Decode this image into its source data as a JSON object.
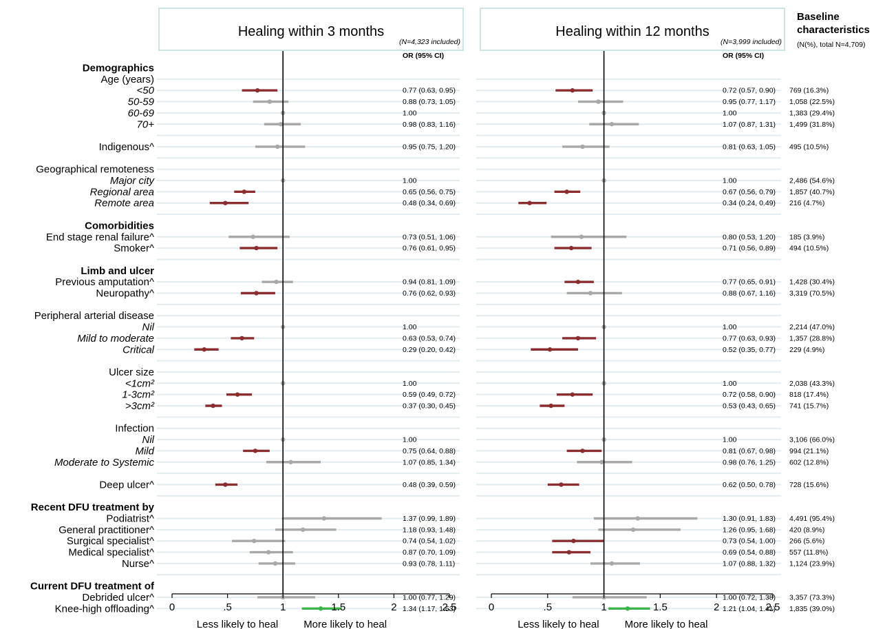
{
  "panels": [
    {
      "title": "Healing within 3 months",
      "n_note": "(N=4,323 included)",
      "or_header": "OR (95% CI)"
    },
    {
      "title": "Healing within 12 months",
      "n_note": "(N=3,999 included)",
      "or_header": "OR (95% CI)"
    }
  ],
  "baseline": {
    "title_line1": "Baseline",
    "title_line2": "characteristics",
    "subtitle": "(N(%), total N=4,709)"
  },
  "axis": {
    "ticks": [
      "0",
      ".5",
      "1",
      "1.5",
      "2",
      "2.5"
    ],
    "label_left": "Less likely to heal",
    "label_right": "More likely to heal"
  },
  "colors": {
    "significant_negative": "#8b2c2f",
    "non_significant": "#a8a8a8",
    "significant_positive": "#3cb44b",
    "grid": "#e2ecf0",
    "panel_border": "#cfe3e3"
  },
  "chart_data": {
    "type": "forest",
    "reference_line": 1,
    "xlim": [
      0,
      2.5
    ],
    "series_names": [
      "Healing within 3 months",
      "Healing within 12 months"
    ],
    "rows": [
      {
        "label": "Demographics",
        "style": "section"
      },
      {
        "label": "Age (years)",
        "style": "header"
      },
      {
        "label": "<50",
        "style": "sub",
        "baseline": "769 (16.3%)",
        "or3": {
          "or": 0.77,
          "lo": 0.63,
          "hi": 0.95,
          "text": "0.77 (0.63, 0.95)",
          "sig": "neg"
        },
        "or12": {
          "or": 0.72,
          "lo": 0.57,
          "hi": 0.9,
          "text": "0.72 (0.57, 0.90)",
          "sig": "neg"
        }
      },
      {
        "label": "50-59",
        "style": "sub",
        "baseline": "1,058 (22.5%)",
        "or3": {
          "or": 0.88,
          "lo": 0.73,
          "hi": 1.05,
          "text": "0.88 (0.73, 1.05)",
          "sig": "ns"
        },
        "or12": {
          "or": 0.95,
          "lo": 0.77,
          "hi": 1.17,
          "text": "0.95 (0.77, 1.17)",
          "sig": "ns"
        }
      },
      {
        "label": "60-69",
        "style": "sub",
        "baseline": "1,383 (29.4%)",
        "or3": {
          "or": 1,
          "lo": 1,
          "hi": 1,
          "text": "1.00",
          "sig": "ns"
        },
        "or12": {
          "or": 1,
          "lo": 1,
          "hi": 1,
          "text": "1.00",
          "sig": "ns"
        }
      },
      {
        "label": "70+",
        "style": "sub",
        "baseline": "1,499 (31.8%)",
        "or3": {
          "or": 0.98,
          "lo": 0.83,
          "hi": 1.16,
          "text": "0.98 (0.83, 1.16)",
          "sig": "ns"
        },
        "or12": {
          "or": 1.07,
          "lo": 0.87,
          "hi": 1.31,
          "text": "1.07 (0.87, 1.31)",
          "sig": "ns"
        }
      },
      {
        "label": "",
        "style": "blank"
      },
      {
        "label": "Indigenous^",
        "style": "plain",
        "baseline": "495 (10.5%)",
        "or3": {
          "or": 0.95,
          "lo": 0.75,
          "hi": 1.2,
          "text": "0.95 (0.75, 1.20)",
          "sig": "ns"
        },
        "or12": {
          "or": 0.81,
          "lo": 0.63,
          "hi": 1.05,
          "text": "0.81 (0.63, 1.05)",
          "sig": "ns"
        }
      },
      {
        "label": "",
        "style": "blank"
      },
      {
        "label": "Geographical remoteness",
        "style": "header"
      },
      {
        "label": "Major city",
        "style": "sub",
        "baseline": "2,486 (54.6%)",
        "or3": {
          "or": 1,
          "lo": 1,
          "hi": 1,
          "text": "1.00",
          "sig": "ns"
        },
        "or12": {
          "or": 1,
          "lo": 1,
          "hi": 1,
          "text": "1.00",
          "sig": "ns"
        }
      },
      {
        "label": "Regional area",
        "style": "sub",
        "baseline": "1,857 (40.7%)",
        "or3": {
          "or": 0.65,
          "lo": 0.56,
          "hi": 0.75,
          "text": "0.65 (0.56, 0.75)",
          "sig": "neg"
        },
        "or12": {
          "or": 0.67,
          "lo": 0.56,
          "hi": 0.79,
          "text": "0.67 (0.56, 0.79)",
          "sig": "neg"
        }
      },
      {
        "label": "Remote area",
        "style": "sub",
        "baseline": "216 (4.7%)",
        "or3": {
          "or": 0.48,
          "lo": 0.34,
          "hi": 0.69,
          "text": "0.48 (0.34, 0.69)",
          "sig": "neg"
        },
        "or12": {
          "or": 0.34,
          "lo": 0.24,
          "hi": 0.49,
          "text": "0.34 (0.24, 0.49)",
          "sig": "neg"
        }
      },
      {
        "label": "",
        "style": "blank"
      },
      {
        "label": "Comorbidities",
        "style": "section"
      },
      {
        "label": "End stage renal failure^",
        "style": "plain",
        "baseline": "185 (3.9%)",
        "or3": {
          "or": 0.73,
          "lo": 0.51,
          "hi": 1.06,
          "text": "0.73 (0.51, 1.06)",
          "sig": "ns"
        },
        "or12": {
          "or": 0.8,
          "lo": 0.53,
          "hi": 1.2,
          "text": "0.80 (0.53, 1.20)",
          "sig": "ns"
        }
      },
      {
        "label": "Smoker^",
        "style": "plain",
        "baseline": "494 (10.5%)",
        "or3": {
          "or": 0.76,
          "lo": 0.61,
          "hi": 0.95,
          "text": "0.76 (0.61, 0.95)",
          "sig": "neg"
        },
        "or12": {
          "or": 0.71,
          "lo": 0.56,
          "hi": 0.89,
          "text": "0.71 (0.56, 0.89)",
          "sig": "neg"
        }
      },
      {
        "label": "",
        "style": "blank"
      },
      {
        "label": "Limb and ulcer",
        "style": "section"
      },
      {
        "label": "Previous amputation^",
        "style": "plain",
        "baseline": "1,428 (30.4%)",
        "or3": {
          "or": 0.94,
          "lo": 0.81,
          "hi": 1.09,
          "text": "0.94 (0.81, 1.09)",
          "sig": "ns"
        },
        "or12": {
          "or": 0.77,
          "lo": 0.65,
          "hi": 0.91,
          "text": "0.77 (0.65, 0.91)",
          "sig": "neg"
        }
      },
      {
        "label": "Neuropathy^",
        "style": "plain",
        "baseline": "3,319 (70.5%)",
        "or3": {
          "or": 0.76,
          "lo": 0.62,
          "hi": 0.93,
          "text": "0.76 (0.62, 0.93)",
          "sig": "neg"
        },
        "or12": {
          "or": 0.88,
          "lo": 0.67,
          "hi": 1.16,
          "text": "0.88 (0.67, 1.16)",
          "sig": "ns"
        }
      },
      {
        "label": "",
        "style": "blank"
      },
      {
        "label": "Peripheral arterial disease",
        "style": "header"
      },
      {
        "label": "Nil",
        "style": "sub",
        "baseline": "2,214 (47.0%)",
        "or3": {
          "or": 1,
          "lo": 1,
          "hi": 1,
          "text": "1.00",
          "sig": "ns"
        },
        "or12": {
          "or": 1,
          "lo": 1,
          "hi": 1,
          "text": "1.00",
          "sig": "ns"
        }
      },
      {
        "label": "Mild to moderate",
        "style": "sub",
        "baseline": "1,357 (28.8%)",
        "or3": {
          "or": 0.63,
          "lo": 0.53,
          "hi": 0.74,
          "text": "0.63 (0.53, 0.74)",
          "sig": "neg"
        },
        "or12": {
          "or": 0.77,
          "lo": 0.63,
          "hi": 0.93,
          "text": "0.77 (0.63, 0.93)",
          "sig": "neg"
        }
      },
      {
        "label": "Critical",
        "style": "sub",
        "baseline": "229 (4.9%)",
        "or3": {
          "or": 0.29,
          "lo": 0.2,
          "hi": 0.42,
          "text": "0.29 (0.20, 0.42)",
          "sig": "neg"
        },
        "or12": {
          "or": 0.52,
          "lo": 0.35,
          "hi": 0.77,
          "text": "0.52 (0.35, 0.77)",
          "sig": "neg"
        }
      },
      {
        "label": "",
        "style": "blank"
      },
      {
        "label": "Ulcer size",
        "style": "header"
      },
      {
        "label": "<1cm²",
        "style": "sub",
        "baseline": "2,038 (43.3%)",
        "or3": {
          "or": 1,
          "lo": 1,
          "hi": 1,
          "text": "1.00",
          "sig": "ns"
        },
        "or12": {
          "or": 1,
          "lo": 1,
          "hi": 1,
          "text": "1.00",
          "sig": "ns"
        }
      },
      {
        "label": "1-3cm²",
        "style": "sub",
        "baseline": "818 (17.4%)",
        "or3": {
          "or": 0.59,
          "lo": 0.49,
          "hi": 0.72,
          "text": "0.59 (0.49, 0.72)",
          "sig": "neg"
        },
        "or12": {
          "or": 0.72,
          "lo": 0.58,
          "hi": 0.9,
          "text": "0.72 (0.58, 0.90)",
          "sig": "neg"
        }
      },
      {
        "label": ">3cm²",
        "style": "sub",
        "baseline": "741 (15.7%)",
        "or3": {
          "or": 0.37,
          "lo": 0.3,
          "hi": 0.45,
          "text": "0.37 (0.30, 0.45)",
          "sig": "neg"
        },
        "or12": {
          "or": 0.53,
          "lo": 0.43,
          "hi": 0.65,
          "text": "0.53 (0.43, 0.65)",
          "sig": "neg"
        }
      },
      {
        "label": "",
        "style": "blank"
      },
      {
        "label": "Infection",
        "style": "header"
      },
      {
        "label": "Nil",
        "style": "sub",
        "baseline": "3,106 (66.0%)",
        "or3": {
          "or": 1,
          "lo": 1,
          "hi": 1,
          "text": "1.00",
          "sig": "ns"
        },
        "or12": {
          "or": 1,
          "lo": 1,
          "hi": 1,
          "text": "1.00",
          "sig": "ns"
        }
      },
      {
        "label": "Mild",
        "style": "sub",
        "baseline": "994 (21.1%)",
        "or3": {
          "or": 0.75,
          "lo": 0.64,
          "hi": 0.88,
          "text": "0.75 (0.64, 0.88)",
          "sig": "neg"
        },
        "or12": {
          "or": 0.81,
          "lo": 0.67,
          "hi": 0.98,
          "text": "0.81 (0.67, 0.98)",
          "sig": "neg"
        }
      },
      {
        "label": "Moderate to Systemic",
        "style": "sub",
        "baseline": "602 (12.8%)",
        "or3": {
          "or": 1.07,
          "lo": 0.85,
          "hi": 1.34,
          "text": "1.07 (0.85, 1.34)",
          "sig": "ns"
        },
        "or12": {
          "or": 0.98,
          "lo": 0.76,
          "hi": 1.25,
          "text": "0.98 (0.76, 1.25)",
          "sig": "ns"
        }
      },
      {
        "label": "",
        "style": "blank"
      },
      {
        "label": "Deep ulcer^",
        "style": "plain",
        "baseline": "728 (15.6%)",
        "or3": {
          "or": 0.48,
          "lo": 0.39,
          "hi": 0.59,
          "text": "0.48 (0.39, 0.59)",
          "sig": "neg"
        },
        "or12": {
          "or": 0.62,
          "lo": 0.5,
          "hi": 0.78,
          "text": "0.62 (0.50, 0.78)",
          "sig": "neg"
        }
      },
      {
        "label": "",
        "style": "blank"
      },
      {
        "label": "Recent DFU treatment by",
        "style": "section"
      },
      {
        "label": "Podiatrist^",
        "style": "plain",
        "baseline": "4,491 (95.4%)",
        "or3": {
          "or": 1.37,
          "lo": 0.99,
          "hi": 1.89,
          "text": "1.37 (0.99, 1.89)",
          "sig": "ns"
        },
        "or12": {
          "or": 1.3,
          "lo": 0.91,
          "hi": 1.83,
          "text": "1.30 (0.91, 1.83)",
          "sig": "ns"
        }
      },
      {
        "label": "General practitioner^",
        "style": "plain",
        "baseline": "420 (8.9%)",
        "or3": {
          "or": 1.18,
          "lo": 0.93,
          "hi": 1.48,
          "text": "1.18 (0.93, 1.48)",
          "sig": "ns"
        },
        "or12": {
          "or": 1.26,
          "lo": 0.95,
          "hi": 1.68,
          "text": "1.26 (0.95, 1.68)",
          "sig": "ns"
        }
      },
      {
        "label": "Surgical specialist^",
        "style": "plain",
        "baseline": "266 (5.6%)",
        "or3": {
          "or": 0.74,
          "lo": 0.54,
          "hi": 1.02,
          "text": "0.74 (0.54, 1.02)",
          "sig": "ns"
        },
        "or12": {
          "or": 0.73,
          "lo": 0.54,
          "hi": 1.0,
          "text": "0.73 (0.54, 1.00)",
          "sig": "neg"
        }
      },
      {
        "label": "Medical specialist^",
        "style": "plain",
        "baseline": "557 (11.8%)",
        "or3": {
          "or": 0.87,
          "lo": 0.7,
          "hi": 1.09,
          "text": "0.87 (0.70, 1.09)",
          "sig": "ns"
        },
        "or12": {
          "or": 0.69,
          "lo": 0.54,
          "hi": 0.88,
          "text": "0.69 (0.54, 0.88)",
          "sig": "neg"
        }
      },
      {
        "label": "Nurse^",
        "style": "plain",
        "baseline": "1,124 (23.9%)",
        "or3": {
          "or": 0.93,
          "lo": 0.78,
          "hi": 1.11,
          "text": "0.93 (0.78, 1.11)",
          "sig": "ns"
        },
        "or12": {
          "or": 1.07,
          "lo": 0.88,
          "hi": 1.32,
          "text": "1.07 (0.88, 1.32)",
          "sig": "ns"
        }
      },
      {
        "label": "",
        "style": "blank"
      },
      {
        "label": "Current DFU treatment of",
        "style": "section"
      },
      {
        "label": "Debrided ulcer^",
        "style": "plain",
        "baseline": "3,357 (73.3%)",
        "or3": {
          "or": 1.0,
          "lo": 0.77,
          "hi": 1.29,
          "text": "1.00 (0.77, 1.29)",
          "sig": "ns"
        },
        "or12": {
          "or": 1.0,
          "lo": 0.72,
          "hi": 1.38,
          "text": "1.00 (0.72, 1.38)",
          "sig": "ns"
        }
      },
      {
        "label": "Knee-high offloading^",
        "style": "plain",
        "baseline": "1,835 (39.0%)",
        "or3": {
          "or": 1.34,
          "lo": 1.17,
          "hi": 1.53,
          "text": "1.34 (1.17, 1.53)",
          "sig": "pos"
        },
        "or12": {
          "or": 1.21,
          "lo": 1.04,
          "hi": 1.41,
          "text": "1.21 (1.04, 1.41)",
          "sig": "pos"
        }
      }
    ]
  }
}
